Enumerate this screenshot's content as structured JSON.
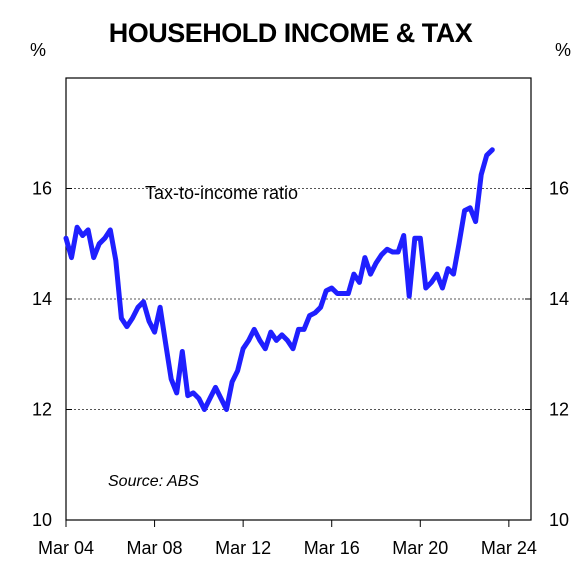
{
  "chart_data": {
    "type": "line",
    "title": "HOUSEHOLD INCOME & TAX",
    "left_unit": "%",
    "right_unit": "%",
    "annotation": "Tax-to-income ratio",
    "source": "Source: ABS",
    "x_tick_labels": [
      "Mar 04",
      "Mar 08",
      "Mar 12",
      "Mar 16",
      "Mar 20",
      "Mar 24"
    ],
    "x_ticks": [
      2004.0,
      2008.0,
      2012.0,
      2016.0,
      2020.0,
      2024.0
    ],
    "xlim": [
      2004.0,
      2025.0
    ],
    "ylim": [
      10,
      18
    ],
    "y_ticks": [
      10,
      12,
      14,
      16
    ],
    "y_tick_labels": [
      "10",
      "12",
      "14",
      "16"
    ],
    "grid": "horizontal dotted",
    "line_color": "#1f1fff",
    "series": [
      {
        "values": [
          [
            2004.0,
            15.1
          ],
          [
            2004.25,
            14.75
          ],
          [
            2004.5,
            15.3
          ],
          [
            2004.75,
            15.15
          ],
          [
            2005.0,
            15.25
          ],
          [
            2005.25,
            14.75
          ],
          [
            2005.5,
            15.0
          ],
          [
            2005.75,
            15.1
          ],
          [
            2006.0,
            15.25
          ],
          [
            2006.25,
            14.7
          ],
          [
            2006.5,
            13.65
          ],
          [
            2006.75,
            13.5
          ],
          [
            2007.0,
            13.65
          ],
          [
            2007.25,
            13.85
          ],
          [
            2007.5,
            13.95
          ],
          [
            2007.75,
            13.6
          ],
          [
            2008.0,
            13.4
          ],
          [
            2008.25,
            13.85
          ],
          [
            2008.5,
            13.2
          ],
          [
            2008.75,
            12.55
          ],
          [
            2009.0,
            12.3
          ],
          [
            2009.25,
            13.05
          ],
          [
            2009.5,
            12.25
          ],
          [
            2009.75,
            12.3
          ],
          [
            2010.0,
            12.2
          ],
          [
            2010.25,
            12.0
          ],
          [
            2010.5,
            12.2
          ],
          [
            2010.75,
            12.4
          ],
          [
            2011.0,
            12.2
          ],
          [
            2011.25,
            12.0
          ],
          [
            2011.5,
            12.5
          ],
          [
            2011.75,
            12.7
          ],
          [
            2012.0,
            13.1
          ],
          [
            2012.25,
            13.25
          ],
          [
            2012.5,
            13.45
          ],
          [
            2012.75,
            13.25
          ],
          [
            2013.0,
            13.1
          ],
          [
            2013.25,
            13.4
          ],
          [
            2013.5,
            13.25
          ],
          [
            2013.75,
            13.35
          ],
          [
            2014.0,
            13.25
          ],
          [
            2014.25,
            13.1
          ],
          [
            2014.5,
            13.45
          ],
          [
            2014.75,
            13.45
          ],
          [
            2015.0,
            13.7
          ],
          [
            2015.25,
            13.75
          ],
          [
            2015.5,
            13.85
          ],
          [
            2015.75,
            14.15
          ],
          [
            2016.0,
            14.2
          ],
          [
            2016.25,
            14.1
          ],
          [
            2016.5,
            14.1
          ],
          [
            2016.75,
            14.1
          ],
          [
            2017.0,
            14.45
          ],
          [
            2017.25,
            14.3
          ],
          [
            2017.5,
            14.75
          ],
          [
            2017.75,
            14.45
          ],
          [
            2018.0,
            14.65
          ],
          [
            2018.25,
            14.8
          ],
          [
            2018.5,
            14.9
          ],
          [
            2018.75,
            14.85
          ],
          [
            2019.0,
            14.85
          ],
          [
            2019.25,
            15.15
          ],
          [
            2019.5,
            14.05
          ],
          [
            2019.75,
            15.1
          ],
          [
            2020.0,
            15.1
          ],
          [
            2020.25,
            14.2
          ],
          [
            2020.5,
            14.3
          ],
          [
            2020.75,
            14.45
          ],
          [
            2021.0,
            14.2
          ],
          [
            2021.25,
            14.55
          ],
          [
            2021.5,
            14.45
          ],
          [
            2021.75,
            15.0
          ],
          [
            2022.0,
            15.6
          ],
          [
            2022.25,
            15.65
          ],
          [
            2022.5,
            15.4
          ],
          [
            2022.75,
            16.25
          ],
          [
            2023.0,
            16.6
          ],
          [
            2023.25,
            16.7
          ]
        ]
      }
    ]
  }
}
